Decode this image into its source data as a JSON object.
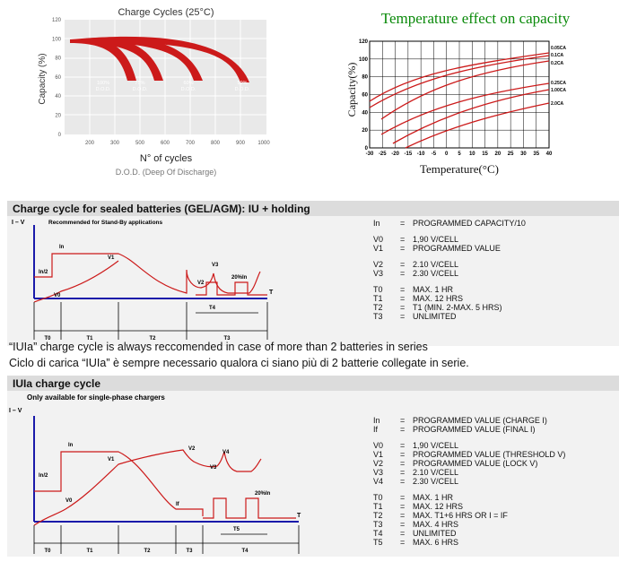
{
  "cycles_chart": {
    "title": "Charge Cycles (25°C)",
    "ylabel": "Capacity (%)",
    "xlabel": "N° of cycles",
    "subtitle": "D.O.D. (Deep Of Discharge)",
    "yticks": [
      "120",
      "100",
      "80",
      "60",
      "40",
      "20",
      "0"
    ],
    "xticks": [
      "200",
      "300",
      "500",
      "600",
      "700",
      "800",
      "900",
      "1000"
    ],
    "curve_labels": [
      "100%",
      "75%",
      "60%",
      "50%"
    ],
    "curve_sub": "D.O.D."
  },
  "temp_chart": {
    "title": "Temperature effect on capacity",
    "ylabel": "Capacity(%)",
    "xlabel": "Temperature(°C)",
    "yticks": [
      "120",
      "100",
      "80",
      "60",
      "40",
      "20",
      "0"
    ],
    "xticks": [
      "-30",
      "-25",
      "-20",
      "-15",
      "-10",
      "-5",
      "0",
      "5",
      "10",
      "15",
      "20",
      "25",
      "30",
      "35",
      "40"
    ],
    "series_labels": [
      "0.05CA",
      "0.1CA",
      "0.2CA",
      "0.25CA",
      "1.00CA",
      "2.0CA"
    ]
  },
  "section1": {
    "title": "Charge cycle for sealed batteries (GEL/AGM): IU + holding",
    "subtitle": "Recommended for Stand-By applications",
    "yaxis": "I – V",
    "taxis": "T",
    "labels": {
      "in": "In",
      "in2": "In/2",
      "v0": "V0",
      "v1": "V1",
      "v2": "V2",
      "v3": "V3",
      "pulse": "20%In",
      "t4": "T4"
    },
    "phases": [
      "T0",
      "T1",
      "T2",
      "T3"
    ],
    "legend": [
      {
        "k": "In",
        "v": "PROGRAMMED CAPACITY/10"
      },
      {
        "k": "V0",
        "v": "1,90 V/CELL"
      },
      {
        "k": "V1",
        "v": "PROGRAMMED VALUE"
      },
      {
        "k": "V2",
        "v": "2.10 V/CELL"
      },
      {
        "k": "V3",
        "v": "2.30 V/CELL"
      },
      {
        "k": "T0",
        "v": "MAX. 1 HR"
      },
      {
        "k": "T1",
        "v": "MAX. 12 HRS"
      },
      {
        "k": "T2",
        "v": "T1 (MIN. 2-MAX. 5 HRS)"
      },
      {
        "k": "T3",
        "v": "UNLIMITED"
      }
    ]
  },
  "notes": [
    "“IUIa” charge cycle is always reccomended in case of more than 2 batteries in series",
    "Ciclo di carica “IUIa” è sempre necessario qualora ci siano più di 2 batterie collegate in serie."
  ],
  "section2": {
    "title": "IUIa charge cycle",
    "subtitle": "Only available for single-phase chargers",
    "yaxis": "I – V",
    "taxis": "T",
    "labels": {
      "in": "In",
      "in2": "In/2",
      "v0": "V0",
      "v1": "V1",
      "v2": "V2",
      "v3": "V3",
      "v4": "V4",
      "if": "If",
      "pulse": "20%In",
      "t5": "T5"
    },
    "phases": [
      "T0",
      "T1",
      "T2",
      "T3",
      "T4"
    ],
    "legend": [
      {
        "k": "In",
        "v": "PROGRAMMED VALUE (CHARGE I)"
      },
      {
        "k": "If",
        "v": "PROGRAMMED VALUE (FINAL I)"
      },
      {
        "k": "V0",
        "v": "1,90 V/CELL"
      },
      {
        "k": "V1",
        "v": "PROGRAMMED VALUE (THRESHOLD V)"
      },
      {
        "k": "V2",
        "v": "PROGRAMMED VALUE (LOCK V)"
      },
      {
        "k": "V3",
        "v": "2.10 V/CELL"
      },
      {
        "k": "V4",
        "v": "2.30 V/CELL"
      },
      {
        "k": "T0",
        "v": "MAX. 1 HR"
      },
      {
        "k": "T1",
        "v": "MAX. 12 HRS"
      },
      {
        "k": "T2",
        "v": "MAX. T1+6 HRS OR I = IF"
      },
      {
        "k": "T3",
        "v": "MAX. 4 HRS"
      },
      {
        "k": "T4",
        "v": "UNLIMITED"
      },
      {
        "k": "T5",
        "v": "MAX. 6 HRS"
      }
    ]
  },
  "colors": {
    "red": "#d42020",
    "blue": "#1a1aaa",
    "panel": "#f2f2f2",
    "header": "#dcdcdc"
  }
}
